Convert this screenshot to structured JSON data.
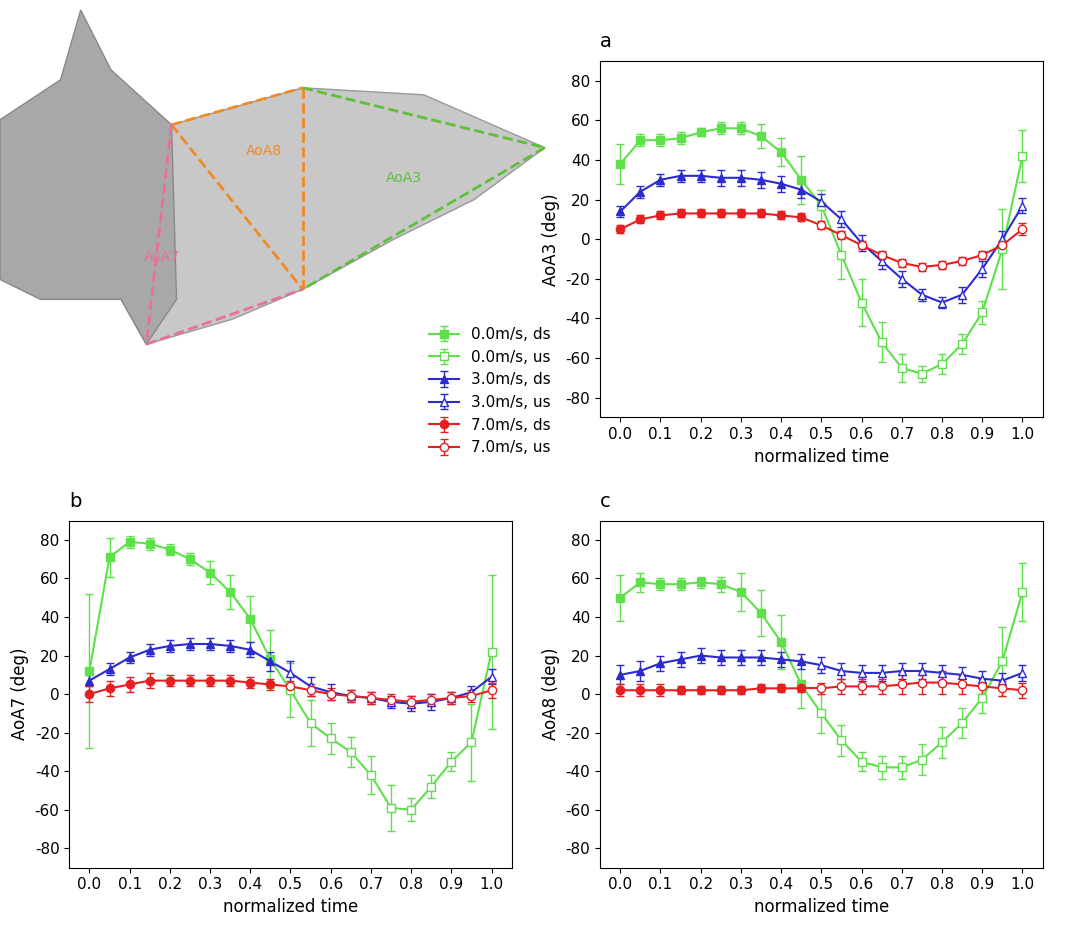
{
  "chart_data": [
    {
      "type": "line",
      "title": "a",
      "x_label": "normalized time",
      "y_label": "AoA3 (deg)",
      "xlim": [
        -0.05,
        1.05
      ],
      "ylim": [
        -90,
        90
      ],
      "xticks": [
        {
          "value": 0.0,
          "label": "0.0"
        },
        {
          "value": 0.1,
          "label": "0.1"
        },
        {
          "value": 0.2,
          "label": "0.2"
        },
        {
          "value": 0.3,
          "label": "0.3"
        },
        {
          "value": 0.4,
          "label": "0.4"
        },
        {
          "value": 0.5,
          "label": "0.5"
        },
        {
          "value": 0.6,
          "label": "0.6"
        },
        {
          "value": 0.7,
          "label": "0.7"
        },
        {
          "value": 0.8,
          "label": "0.8"
        },
        {
          "value": 0.9,
          "label": "0.9"
        },
        {
          "value": 1.0,
          "label": "1.0"
        }
      ],
      "yticks": [
        -80,
        -60,
        -40,
        -20,
        0,
        20,
        40,
        60,
        80
      ],
      "legend": "lower right",
      "series": [
        {
          "name": "0.0m/s, ds",
          "color": "#5ee04a",
          "marker": "square",
          "x": [
            0.0,
            0.05,
            0.1,
            0.15,
            0.2,
            0.25,
            0.3,
            0.35,
            0.4,
            0.45
          ],
          "values": [
            38,
            50,
            50,
            51,
            54,
            56,
            56,
            52,
            44,
            30
          ],
          "errors": [
            10,
            3,
            3,
            3,
            2,
            3,
            3,
            6,
            7,
            12
          ]
        },
        {
          "name": "0.0m/s, us",
          "color": "#5ee04a",
          "marker": "square_open",
          "x": [
            0.5,
            0.55,
            0.6,
            0.65,
            0.7,
            0.75,
            0.8,
            0.85,
            0.9,
            0.95,
            1.0
          ],
          "values": [
            17,
            -8,
            -32,
            -52,
            -65,
            -68,
            -63,
            -53,
            -37,
            -5,
            42
          ],
          "errors": [
            8,
            12,
            12,
            10,
            7,
            4,
            5,
            5,
            6,
            20,
            13
          ]
        },
        {
          "name": "3.0m/s, ds",
          "color": "#2b2bd0",
          "marker": "triangle",
          "x": [
            0.0,
            0.05,
            0.1,
            0.15,
            0.2,
            0.25,
            0.3,
            0.35,
            0.4,
            0.45
          ],
          "values": [
            14,
            24,
            30,
            32,
            32,
            31,
            31,
            30,
            28,
            25
          ],
          "errors": [
            3,
            3,
            3,
            3,
            3,
            4,
            4,
            4,
            4,
            4
          ]
        },
        {
          "name": "3.0m/s, us",
          "color": "#2b2bd0",
          "marker": "triangle_open",
          "x": [
            0.5,
            0.55,
            0.6,
            0.65,
            0.7,
            0.75,
            0.8,
            0.85,
            0.9,
            0.95,
            1.0
          ],
          "values": [
            19,
            10,
            -2,
            -11,
            -20,
            -28,
            -32,
            -28,
            -15,
            0,
            17
          ],
          "errors": [
            4,
            4,
            4,
            4,
            4,
            3,
            3,
            4,
            4,
            4,
            4
          ]
        },
        {
          "name": "7.0m/s, ds",
          "color": "#e62020",
          "marker": "circle",
          "x": [
            0.0,
            0.05,
            0.1,
            0.15,
            0.2,
            0.25,
            0.3,
            0.35,
            0.4,
            0.45
          ],
          "values": [
            5,
            10,
            12,
            13,
            13,
            13,
            13,
            13,
            12,
            11
          ],
          "errors": [
            2,
            2,
            2,
            2,
            2,
            2,
            2,
            2,
            2,
            2
          ]
        },
        {
          "name": "7.0m/s, us",
          "color": "#e62020",
          "marker": "circle_open",
          "x": [
            0.5,
            0.55,
            0.6,
            0.65,
            0.7,
            0.75,
            0.8,
            0.85,
            0.9,
            0.95,
            1.0
          ],
          "values": [
            7,
            2,
            -3,
            -8,
            -12,
            -14,
            -13,
            -11,
            -8,
            -3,
            5
          ],
          "errors": [
            2,
            2,
            2,
            2,
            2,
            2,
            2,
            2,
            2,
            2,
            3
          ]
        }
      ]
    },
    {
      "type": "line",
      "title": "b",
      "x_label": "normalized time",
      "y_label": "AoA7 (deg)",
      "xlim": [
        -0.05,
        1.05
      ],
      "ylim": [
        -90,
        90
      ],
      "xticks": [
        {
          "value": 0.0,
          "label": "0.0"
        },
        {
          "value": 0.1,
          "label": "0.1"
        },
        {
          "value": 0.2,
          "label": "0.2"
        },
        {
          "value": 0.3,
          "label": "0.3"
        },
        {
          "value": 0.4,
          "label": "0.4"
        },
        {
          "value": 0.5,
          "label": "0.5"
        },
        {
          "value": 0.6,
          "label": "0.6"
        },
        {
          "value": 0.7,
          "label": "0.7"
        },
        {
          "value": 0.8,
          "label": "0.8"
        },
        {
          "value": 0.9,
          "label": "0.9"
        },
        {
          "value": 1.0,
          "label": "1.0"
        }
      ],
      "yticks": [
        -80,
        -60,
        -40,
        -20,
        0,
        20,
        40,
        60,
        80
      ],
      "series": [
        {
          "name": "0.0m/s, ds",
          "color": "#5ee04a",
          "marker": "square",
          "x": [
            0.0,
            0.05,
            0.1,
            0.15,
            0.2,
            0.25,
            0.3,
            0.35,
            0.4,
            0.45
          ],
          "values": [
            12,
            71,
            79,
            78,
            75,
            70,
            63,
            53,
            39,
            18
          ],
          "errors": [
            40,
            10,
            3,
            3,
            3,
            3,
            6,
            9,
            12,
            15
          ]
        },
        {
          "name": "0.0m/s, us",
          "color": "#5ee04a",
          "marker": "square_open",
          "x": [
            0.5,
            0.55,
            0.6,
            0.65,
            0.7,
            0.75,
            0.8,
            0.85,
            0.9,
            0.95,
            1.0
          ],
          "values": [
            2,
            -15,
            -23,
            -30,
            -42,
            -59,
            -60,
            -48,
            -35,
            -25,
            22
          ],
          "errors": [
            14,
            12,
            8,
            8,
            10,
            12,
            6,
            6,
            5,
            20,
            40
          ]
        },
        {
          "name": "3.0m/s, ds",
          "color": "#2b2bd0",
          "marker": "triangle",
          "x": [
            0.0,
            0.05,
            0.1,
            0.15,
            0.2,
            0.25,
            0.3,
            0.35,
            0.4,
            0.45
          ],
          "values": [
            7,
            13,
            19,
            23,
            25,
            26,
            26,
            25,
            23,
            17
          ],
          "errors": [
            3,
            3,
            3,
            3,
            3,
            3,
            3,
            3,
            4,
            5
          ]
        },
        {
          "name": "3.0m/s, us",
          "color": "#2b2bd0",
          "marker": "triangle_open",
          "x": [
            0.5,
            0.55,
            0.6,
            0.65,
            0.7,
            0.75,
            0.8,
            0.85,
            0.9,
            0.95,
            1.0
          ],
          "values": [
            11,
            4,
            1,
            -1,
            -2,
            -4,
            -5,
            -4,
            -2,
            1,
            9
          ],
          "errors": [
            6,
            5,
            4,
            3,
            3,
            3,
            4,
            4,
            3,
            3,
            4
          ]
        },
        {
          "name": "7.0m/s, ds",
          "color": "#e62020",
          "marker": "circle",
          "x": [
            0.0,
            0.05,
            0.1,
            0.15,
            0.2,
            0.25,
            0.3,
            0.35,
            0.4,
            0.45
          ],
          "values": [
            0,
            3,
            5,
            7,
            7,
            7,
            7,
            7,
            6,
            5
          ],
          "errors": [
            4,
            4,
            4,
            4,
            3,
            3,
            3,
            3,
            3,
            3
          ]
        },
        {
          "name": "7.0m/s, us",
          "color": "#e62020",
          "marker": "circle_open",
          "x": [
            0.5,
            0.55,
            0.6,
            0.65,
            0.7,
            0.75,
            0.8,
            0.85,
            0.9,
            0.95,
            1.0
          ],
          "values": [
            4,
            2,
            0,
            -1,
            -2,
            -3,
            -4,
            -3,
            -2,
            -1,
            2
          ],
          "errors": [
            3,
            3,
            3,
            3,
            3,
            3,
            3,
            3,
            3,
            3,
            4
          ]
        }
      ]
    },
    {
      "type": "line",
      "title": "c",
      "x_label": "normalized time",
      "y_label": "AoA8 (deg)",
      "xlim": [
        -0.05,
        1.05
      ],
      "ylim": [
        -90,
        90
      ],
      "xticks": [
        {
          "value": 0.0,
          "label": "0.0"
        },
        {
          "value": 0.1,
          "label": "0.1"
        },
        {
          "value": 0.2,
          "label": "0.2"
        },
        {
          "value": 0.3,
          "label": "0.3"
        },
        {
          "value": 0.4,
          "label": "0.4"
        },
        {
          "value": 0.5,
          "label": "0.5"
        },
        {
          "value": 0.6,
          "label": "0.6"
        },
        {
          "value": 0.7,
          "label": "0.7"
        },
        {
          "value": 0.8,
          "label": "0.8"
        },
        {
          "value": 0.9,
          "label": "0.9"
        },
        {
          "value": 1.0,
          "label": "1.0"
        }
      ],
      "yticks": [
        -80,
        -60,
        -40,
        -20,
        0,
        20,
        40,
        60,
        80
      ],
      "series": [
        {
          "name": "0.0m/s, ds",
          "color": "#5ee04a",
          "marker": "square",
          "x": [
            0.0,
            0.05,
            0.1,
            0.15,
            0.2,
            0.25,
            0.3,
            0.35,
            0.4,
            0.45
          ],
          "values": [
            50,
            58,
            57,
            57,
            58,
            57,
            53,
            42,
            27,
            5
          ],
          "errors": [
            12,
            5,
            3,
            3,
            3,
            4,
            10,
            12,
            14,
            12
          ]
        },
        {
          "name": "0.0m/s, us",
          "color": "#5ee04a",
          "marker": "square_open",
          "x": [
            0.5,
            0.55,
            0.6,
            0.65,
            0.7,
            0.75,
            0.8,
            0.85,
            0.9,
            0.95,
            1.0
          ],
          "values": [
            -10,
            -24,
            -35,
            -38,
            -38,
            -34,
            -25,
            -15,
            -2,
            17,
            53
          ],
          "errors": [
            10,
            8,
            5,
            6,
            6,
            8,
            8,
            8,
            8,
            18,
            15
          ]
        },
        {
          "name": "3.0m/s, ds",
          "color": "#2b2bd0",
          "marker": "triangle",
          "x": [
            0.0,
            0.05,
            0.1,
            0.15,
            0.2,
            0.25,
            0.3,
            0.35,
            0.4,
            0.45
          ],
          "values": [
            10,
            12,
            16,
            18,
            20,
            19,
            19,
            19,
            18,
            17
          ],
          "errors": [
            5,
            5,
            4,
            4,
            4,
            4,
            4,
            4,
            4,
            4
          ]
        },
        {
          "name": "3.0m/s, us",
          "color": "#2b2bd0",
          "marker": "triangle_open",
          "x": [
            0.5,
            0.55,
            0.6,
            0.65,
            0.7,
            0.75,
            0.8,
            0.85,
            0.9,
            0.95,
            1.0
          ],
          "values": [
            15,
            12,
            11,
            11,
            12,
            12,
            11,
            10,
            8,
            7,
            11
          ],
          "errors": [
            4,
            4,
            4,
            4,
            4,
            4,
            4,
            4,
            4,
            4,
            4
          ]
        },
        {
          "name": "7.0m/s, ds",
          "color": "#e62020",
          "marker": "circle",
          "x": [
            0.0,
            0.05,
            0.1,
            0.15,
            0.2,
            0.25,
            0.3,
            0.35,
            0.4,
            0.45
          ],
          "values": [
            2,
            2,
            2,
            2,
            2,
            2,
            2,
            3,
            3,
            3
          ],
          "errors": [
            3,
            3,
            3,
            2,
            2,
            2,
            2,
            2,
            2,
            2
          ]
        },
        {
          "name": "7.0m/s, us",
          "color": "#e62020",
          "marker": "circle_open",
          "x": [
            0.5,
            0.55,
            0.6,
            0.65,
            0.7,
            0.75,
            0.8,
            0.85,
            0.9,
            0.95,
            1.0
          ],
          "values": [
            3,
            4,
            4,
            4,
            5,
            6,
            6,
            5,
            4,
            3,
            2
          ],
          "errors": [
            3,
            4,
            4,
            4,
            5,
            6,
            6,
            5,
            4,
            4,
            4
          ]
        }
      ]
    }
  ],
  "diagram": {
    "labels": [
      "AoA8",
      "AoA3",
      "AoA7"
    ]
  }
}
